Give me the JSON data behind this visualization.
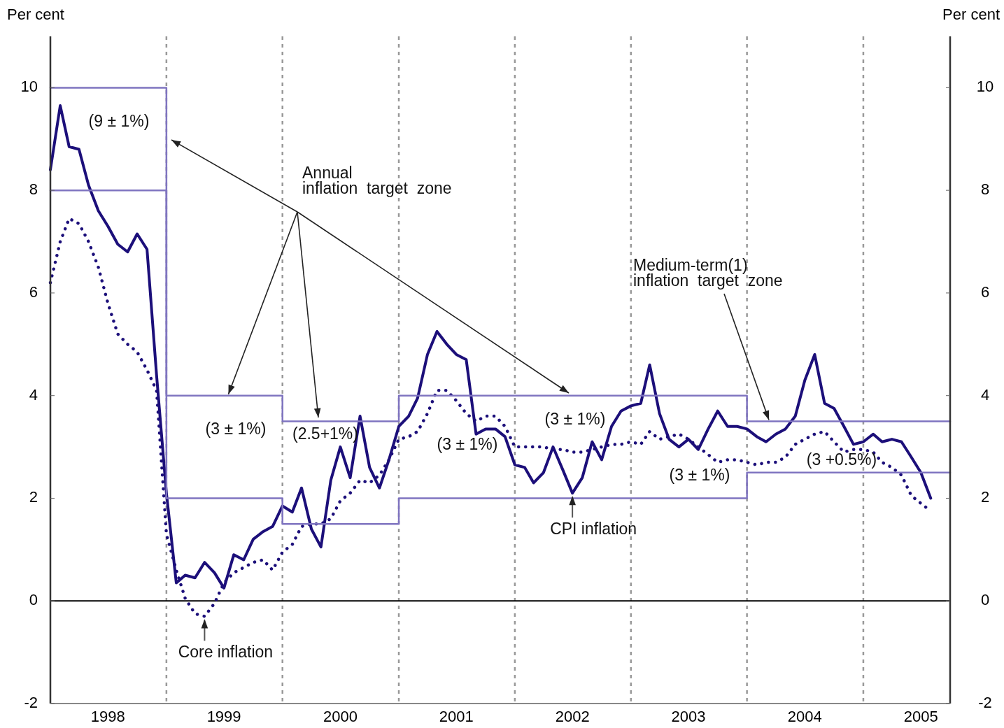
{
  "chart_data": {
    "type": "line",
    "ylabel": "Per cent",
    "y2label": "Per cent",
    "xlim": [
      "1998-01-01",
      "2005-10-01"
    ],
    "xticks": [
      {
        "value": "1998-07-01",
        "label": "1998"
      },
      {
        "value": "1999-07-01",
        "label": "1999"
      },
      {
        "value": "2000-07-01",
        "label": "2000"
      },
      {
        "value": "2001-07-01",
        "label": "2001"
      },
      {
        "value": "2002-07-01",
        "label": "2002"
      },
      {
        "value": "2003-07-01",
        "label": "2003"
      },
      {
        "value": "2004-07-01",
        "label": "2004"
      },
      {
        "value": "2005-07-01",
        "label": "2005"
      }
    ],
    "ylim": [
      -2,
      11
    ],
    "yticks": [
      -2,
      0,
      2,
      4,
      6,
      8,
      10
    ],
    "y2lim": [
      -2,
      11
    ],
    "y2ticks": [
      -2,
      0,
      2,
      4,
      6,
      8,
      10
    ],
    "x": [
      "1998-01",
      "1998-02",
      "1998-03",
      "1998-04",
      "1998-05",
      "1998-06",
      "1998-07",
      "1998-08",
      "1998-09",
      "1998-10",
      "1998-11",
      "1998-12",
      "1999-01",
      "1999-02",
      "1999-03",
      "1999-04",
      "1999-05",
      "1999-06",
      "1999-07",
      "1999-08",
      "1999-09",
      "1999-10",
      "1999-11",
      "1999-12",
      "2000-01",
      "2000-02",
      "2000-03",
      "2000-04",
      "2000-05",
      "2000-06",
      "2000-07",
      "2000-08",
      "2000-09",
      "2000-10",
      "2000-11",
      "2000-12",
      "2001-01",
      "2001-02",
      "2001-03",
      "2001-04",
      "2001-05",
      "2001-06",
      "2001-07",
      "2001-08",
      "2001-09",
      "2001-10",
      "2001-11",
      "2001-12",
      "2002-01",
      "2002-02",
      "2002-03",
      "2002-04",
      "2002-05",
      "2002-06",
      "2002-07",
      "2002-08",
      "2002-09",
      "2002-10",
      "2002-11",
      "2002-12",
      "2003-01",
      "2003-02",
      "2003-03",
      "2003-04",
      "2003-05",
      "2003-06",
      "2003-07",
      "2003-08",
      "2003-09",
      "2003-10",
      "2003-11",
      "2003-12",
      "2004-01",
      "2004-02",
      "2004-03",
      "2004-04",
      "2004-05",
      "2004-06",
      "2004-07",
      "2004-08",
      "2004-09",
      "2004-10",
      "2004-11",
      "2004-12",
      "2005-01",
      "2005-02",
      "2005-03",
      "2005-04",
      "2005-05",
      "2005-06",
      "2005-07",
      "2005-08"
    ],
    "series": [
      {
        "color": "#1c0f7a",
        "line_style": "solid",
        "values": [
          8.4,
          9.65,
          8.85,
          8.8,
          8.1,
          7.6,
          7.3,
          6.95,
          6.8,
          7.15,
          6.85,
          4.4,
          2.1,
          0.35,
          0.5,
          0.45,
          0.75,
          0.55,
          0.25,
          0.9,
          0.8,
          1.2,
          1.35,
          1.45,
          1.85,
          1.73,
          2.2,
          1.4,
          1.05,
          2.35,
          3.0,
          2.4,
          3.6,
          2.6,
          2.2,
          2.75,
          3.4,
          3.6,
          3.95,
          4.8,
          5.25,
          5.0,
          4.8,
          4.7,
          3.25,
          3.35,
          3.35,
          3.2,
          2.65,
          2.6,
          2.3,
          2.5,
          3.0,
          2.55,
          2.1,
          2.4,
          3.1,
          2.75,
          3.4,
          3.7,
          3.8,
          3.85,
          4.6,
          3.65,
          3.15,
          3.0,
          3.15,
          2.95,
          3.35,
          3.7,
          3.4,
          3.4,
          3.35,
          3.2,
          3.1,
          3.25,
          3.35,
          3.6,
          4.3,
          4.8,
          3.85,
          3.75,
          3.4,
          3.05,
          3.1,
          3.25,
          3.1,
          3.15,
          3.1,
          2.8,
          2.5,
          2.0
        ]
      },
      {
        "color": "#1c0f7a",
        "line_style": "dotted",
        "values": [
          6.2,
          7.0,
          7.45,
          7.35,
          7.0,
          6.5,
          5.8,
          5.2,
          5.0,
          4.85,
          4.5,
          4.1,
          1.3,
          0.6,
          0.05,
          -0.25,
          -0.3,
          -0.05,
          0.35,
          0.55,
          0.65,
          0.75,
          0.8,
          0.6,
          0.95,
          1.1,
          1.45,
          1.5,
          1.5,
          1.6,
          1.95,
          2.1,
          2.35,
          2.3,
          2.45,
          2.75,
          3.15,
          3.2,
          3.3,
          3.65,
          4.1,
          4.1,
          3.9,
          3.65,
          3.5,
          3.6,
          3.6,
          3.4,
          3.0,
          3.0,
          3.0,
          3.0,
          2.95,
          2.95,
          2.9,
          2.9,
          2.95,
          3.0,
          3.05,
          3.05,
          3.1,
          3.05,
          3.3,
          3.15,
          3.2,
          3.25,
          3.15,
          3.0,
          2.85,
          2.7,
          2.75,
          2.75,
          2.7,
          2.65,
          2.7,
          2.7,
          2.8,
          3.05,
          3.15,
          3.25,
          3.3,
          3.1,
          2.9,
          2.95,
          2.95,
          2.9,
          2.7,
          2.6,
          2.45,
          2.05,
          1.9,
          1.75
        ]
      },
      {
        "type": "step",
        "color": "#7f74c0",
        "line_style": "solid",
        "x": [
          "1998-01-01",
          "1999-01-01",
          "2000-01-01",
          "2001-01-01",
          "2002-01-01",
          "2003-01-01",
          "2004-01-01",
          "2005-10-01"
        ],
        "values": [
          10,
          4,
          3.5,
          4,
          4,
          4,
          3.5,
          3.5
        ]
      },
      {
        "type": "step",
        "color": "#7f74c0",
        "line_style": "solid",
        "x": [
          "1998-01-01",
          "1999-01-01",
          "2000-01-01",
          "2001-01-01",
          "2002-01-01",
          "2003-01-01",
          "2004-01-01",
          "2005-10-01"
        ],
        "values": [
          8,
          2,
          1.5,
          2,
          2,
          2,
          2.5,
          2.5
        ]
      }
    ],
    "ref_lines": [
      {
        "axis": "x",
        "value": "1999-01-01",
        "color": "#999999",
        "line_style": "dotted"
      },
      {
        "axis": "x",
        "value": "2000-01-01",
        "color": "#999999",
        "line_style": "dotted"
      },
      {
        "axis": "x",
        "value": "2001-01-01",
        "color": "#999999",
        "line_style": "dotted"
      },
      {
        "axis": "x",
        "value": "2002-01-01",
        "color": "#999999",
        "line_style": "dotted"
      },
      {
        "axis": "x",
        "value": "2003-01-01",
        "color": "#999999",
        "line_style": "dotted"
      },
      {
        "axis": "x",
        "value": "2004-01-01",
        "color": "#999999",
        "line_style": "dotted"
      },
      {
        "axis": "x",
        "value": "2005-01-01",
        "color": "#999999",
        "line_style": "dotted"
      },
      {
        "axis": "y",
        "value": 0,
        "color": "#000000",
        "line_style": "solid"
      }
    ],
    "annotations": [
      "(9 ± 1%)",
      "(3 ± 1%)",
      "(2.5+1%)",
      "(3 ± 1%)",
      "(3 ± 1%)",
      "(3 ± 1%)",
      "(3 +0.5%)",
      {
        "text": "Annual\ninflation  target  zone",
        "x": "1999-07-15",
        "y": 4
      },
      {
        "text": "Medium-term(1)\ninflation  target  zone",
        "x": "2004-03-10",
        "y": 3.5
      },
      {
        "text": "CPI inflation",
        "x": "2002-07-01",
        "y": 2.1
      },
      {
        "text": "Core inflation",
        "x": "1999-05-01",
        "y": -0.3
      }
    ],
    "grid": false,
    "marker": "none"
  }
}
